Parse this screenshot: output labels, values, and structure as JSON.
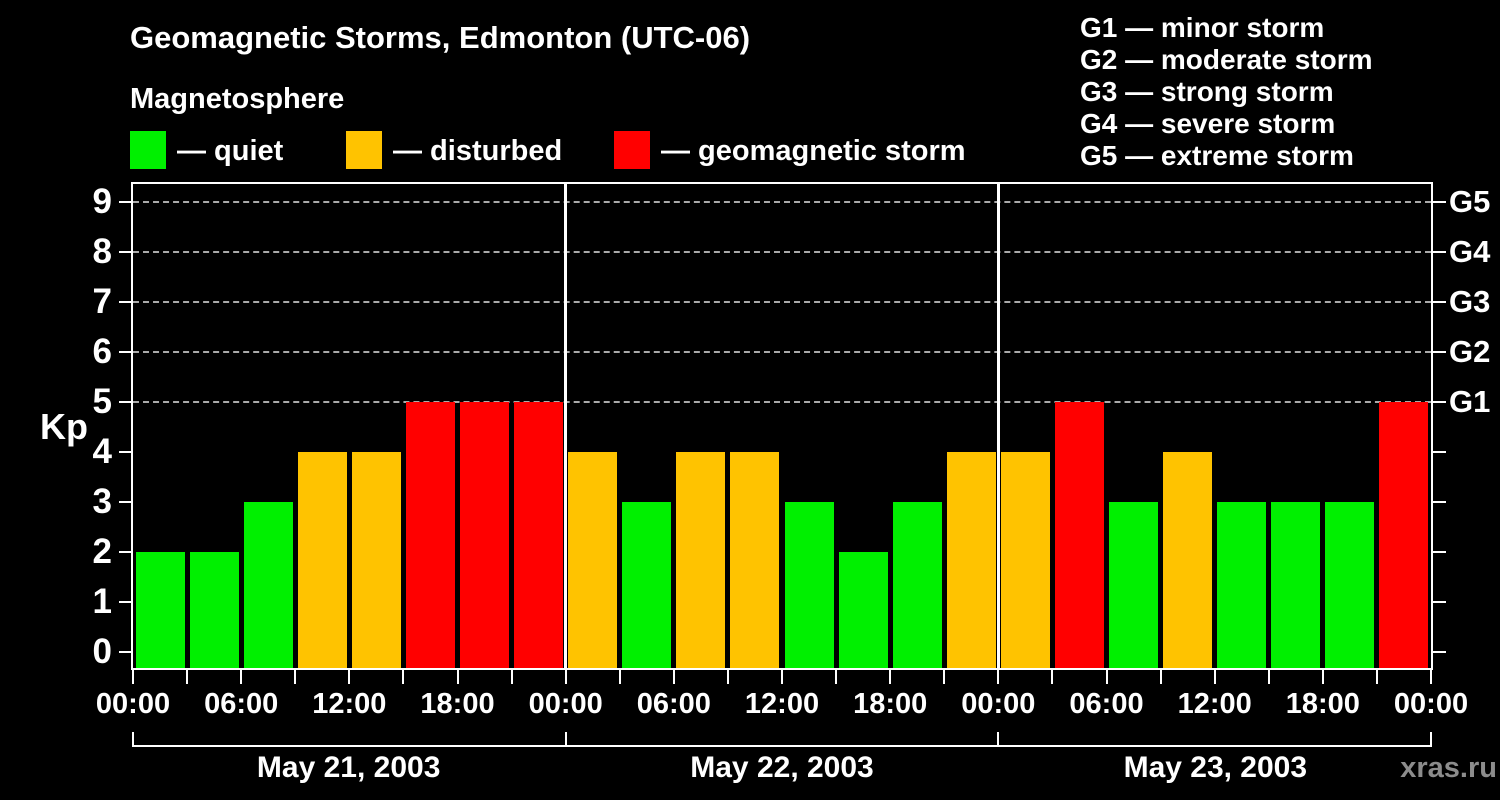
{
  "header": {
    "title": "Geomagnetic Storms, Edmonton (UTC-06)",
    "subtitle": "Magnetosphere",
    "watermark": "xras.ru"
  },
  "legend": {
    "items": [
      {
        "name": "quiet",
        "label": "— quiet",
        "color": "#00f000"
      },
      {
        "name": "disturbed",
        "label": "— disturbed",
        "color": "#ffc300"
      },
      {
        "name": "storm",
        "label": "— geomagnetic storm",
        "color": "#ff0000"
      }
    ]
  },
  "g_legend": [
    "G1 — minor storm",
    "G2 — moderate storm",
    "G3 — strong storm",
    "G4 — severe storm",
    "G5 — extreme storm"
  ],
  "chart_data": {
    "type": "bar",
    "title": "Geomagnetic Storms, Edmonton (UTC-06)",
    "ylabel": "Kp",
    "ylim": [
      0,
      9
    ],
    "y_ticks": [
      0,
      1,
      2,
      3,
      4,
      5,
      6,
      7,
      8,
      9
    ],
    "grid_levels": [
      5,
      6,
      7,
      8,
      9
    ],
    "grid_on": true,
    "right_axis": [
      {
        "label": "G5",
        "kp": 9
      },
      {
        "label": "G4",
        "kp": 8
      },
      {
        "label": "G3",
        "kp": 7
      },
      {
        "label": "G2",
        "kp": 6
      },
      {
        "label": "G1",
        "kp": 5
      }
    ],
    "bar_interval_hours": 3,
    "x_tick_interval_hours": 3,
    "x_label_interval_hours": 6,
    "x_tick_labels": [
      "00:00",
      "06:00",
      "12:00",
      "18:00",
      "00:00",
      "06:00",
      "12:00",
      "18:00",
      "00:00",
      "06:00",
      "12:00",
      "18:00",
      "00:00"
    ],
    "days": [
      {
        "date": "May 21, 2003",
        "kp": [
          2,
          2,
          3,
          4,
          4,
          5,
          5,
          5
        ]
      },
      {
        "date": "May 22, 2003",
        "kp": [
          4,
          3,
          4,
          4,
          3,
          2,
          3,
          4
        ]
      },
      {
        "date": "May 23, 2003",
        "kp": [
          4,
          5,
          3,
          4,
          3,
          3,
          3,
          5
        ]
      }
    ],
    "color_rule": {
      "quiet_max_kp": 3,
      "disturbed_kp": 4,
      "storm_min_kp": 5
    },
    "colors": {
      "quiet": "#00f000",
      "disturbed": "#ffc300",
      "storm": "#ff0000",
      "grid": "#aaaaaa",
      "axis": "#ffffff",
      "background": "#000000"
    }
  }
}
